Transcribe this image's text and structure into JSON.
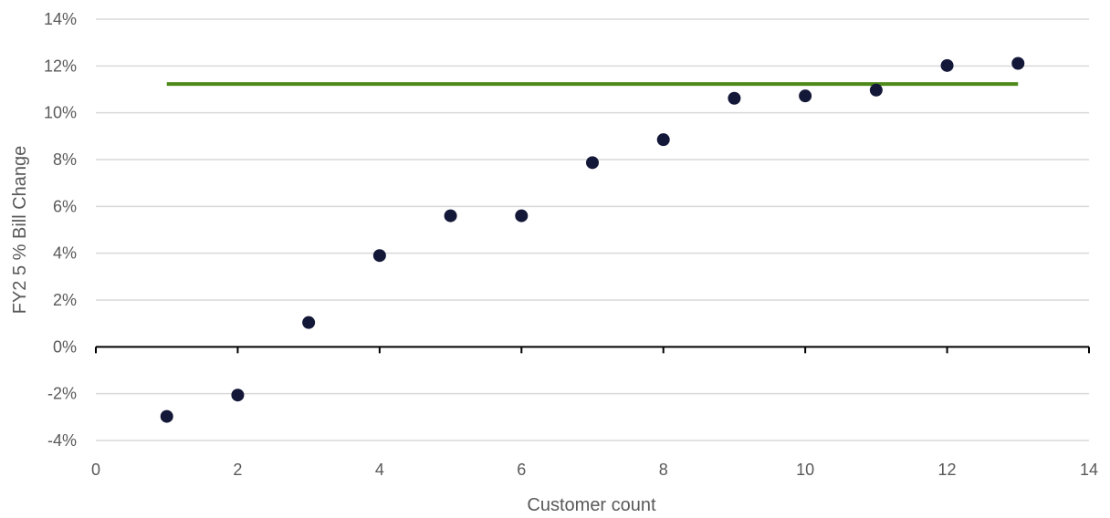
{
  "chart_data": {
    "type": "scatter",
    "title": "",
    "xlabel": "Customer count",
    "ylabel": "FY2 5 % Bill Change",
    "xlim": [
      0,
      14
    ],
    "ylim": [
      -4,
      14
    ],
    "x_ticks": [
      0,
      2,
      4,
      6,
      8,
      10,
      12,
      14
    ],
    "x_tick_labels": [
      "0",
      "2",
      "4",
      "6",
      "8",
      "10",
      "12",
      "14"
    ],
    "y_ticks": [
      -4,
      -2,
      0,
      2,
      4,
      6,
      8,
      10,
      12,
      14
    ],
    "y_tick_labels": [
      "-4%",
      "-2%",
      "0%",
      "2%",
      "4%",
      "6%",
      "8%",
      "10%",
      "12%",
      "14%"
    ],
    "grid": true,
    "legend": "none",
    "series": [
      {
        "type": "scatter",
        "color": "#141838",
        "x": [
          1,
          2,
          3,
          4,
          5,
          6,
          7,
          8,
          9,
          10,
          11,
          12,
          13
        ],
        "y": [
          -2.97,
          -2.06,
          1.04,
          3.9,
          5.6,
          5.6,
          7.87,
          8.85,
          10.62,
          10.72,
          10.97,
          12.02,
          12.11
        ]
      },
      {
        "type": "line",
        "color": "#4e8a1a",
        "x": [
          1,
          13
        ],
        "y": [
          11.23,
          11.23
        ]
      }
    ]
  }
}
